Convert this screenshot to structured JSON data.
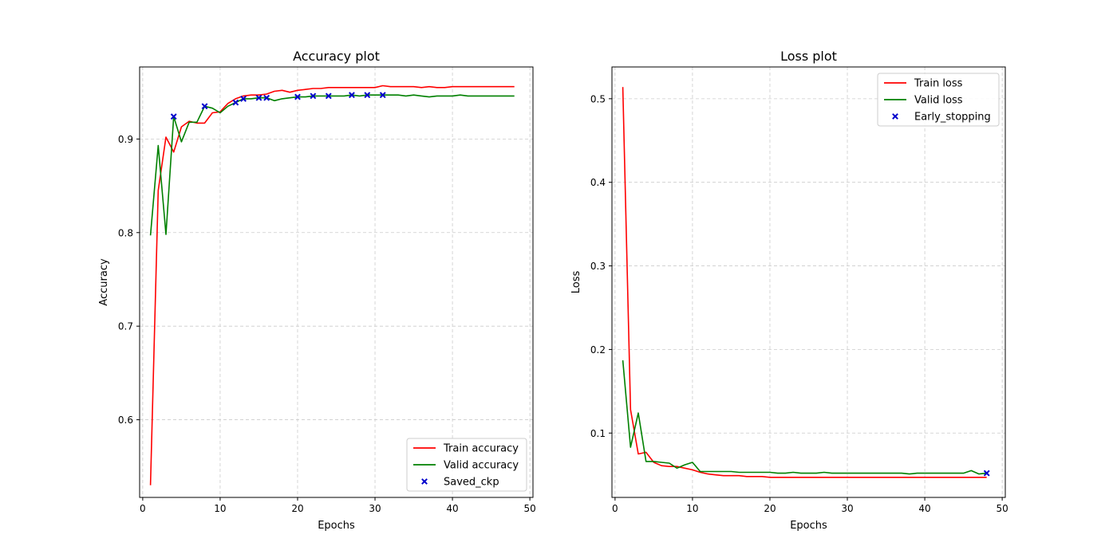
{
  "chart_data": [
    {
      "type": "line",
      "title": "Accuracy plot",
      "xlabel": "Epochs",
      "ylabel": "Accuracy",
      "xlim": [
        -0.4,
        50.4
      ],
      "ylim": [
        0.517,
        0.977
      ],
      "xticks": [
        0,
        10,
        20,
        30,
        40,
        50
      ],
      "yticks": [
        0.6,
        0.7,
        0.8,
        0.9
      ],
      "grid": true,
      "legend_position": "lower-right",
      "series": [
        {
          "name": "Train accuracy",
          "color": "#ff0000",
          "x": [
            1,
            2,
            3,
            4,
            5,
            6,
            7,
            8,
            9,
            10,
            11,
            12,
            13,
            14,
            15,
            16,
            17,
            18,
            19,
            20,
            21,
            22,
            23,
            24,
            25,
            26,
            27,
            28,
            29,
            30,
            31,
            32,
            33,
            34,
            35,
            36,
            37,
            38,
            39,
            40,
            41,
            42,
            43,
            44,
            45,
            46,
            47,
            48
          ],
          "y": [
            0.53,
            0.845,
            0.902,
            0.886,
            0.913,
            0.919,
            0.917,
            0.917,
            0.928,
            0.929,
            0.938,
            0.943,
            0.946,
            0.947,
            0.947,
            0.948,
            0.951,
            0.952,
            0.95,
            0.952,
            0.953,
            0.954,
            0.954,
            0.955,
            0.955,
            0.955,
            0.955,
            0.955,
            0.955,
            0.955,
            0.957,
            0.956,
            0.956,
            0.956,
            0.956,
            0.955,
            0.956,
            0.955,
            0.955,
            0.956,
            0.956,
            0.956,
            0.956,
            0.956,
            0.956,
            0.956,
            0.956,
            0.956
          ]
        },
        {
          "name": "Valid accuracy",
          "color": "#008000",
          "x": [
            1,
            2,
            3,
            4,
            5,
            6,
            7,
            8,
            9,
            10,
            11,
            12,
            13,
            14,
            15,
            16,
            17,
            18,
            19,
            20,
            21,
            22,
            23,
            24,
            25,
            26,
            27,
            28,
            29,
            30,
            31,
            32,
            33,
            34,
            35,
            36,
            37,
            38,
            39,
            40,
            41,
            42,
            43,
            44,
            45,
            46,
            47,
            48
          ],
          "y": [
            0.797,
            0.893,
            0.798,
            0.924,
            0.897,
            0.918,
            0.918,
            0.935,
            0.933,
            0.928,
            0.935,
            0.939,
            0.943,
            0.943,
            0.944,
            0.944,
            0.941,
            0.943,
            0.944,
            0.945,
            0.945,
            0.946,
            0.946,
            0.946,
            0.946,
            0.946,
            0.947,
            0.946,
            0.947,
            0.947,
            0.947,
            0.947,
            0.947,
            0.946,
            0.947,
            0.946,
            0.945,
            0.946,
            0.946,
            0.946,
            0.947,
            0.946,
            0.946,
            0.946,
            0.946,
            0.946,
            0.946,
            0.946
          ]
        },
        {
          "name": "Saved_ckp",
          "type": "scatter",
          "marker": "x",
          "color": "#0000cc",
          "x": [
            4,
            8,
            12,
            13,
            15,
            16,
            20,
            22,
            24,
            27,
            29,
            31
          ],
          "y": [
            0.924,
            0.935,
            0.939,
            0.943,
            0.944,
            0.944,
            0.945,
            0.946,
            0.946,
            0.947,
            0.947,
            0.947
          ]
        }
      ]
    },
    {
      "type": "line",
      "title": "Loss plot",
      "xlabel": "Epochs",
      "ylabel": "Loss",
      "xlim": [
        -0.4,
        50.4
      ],
      "ylim": [
        0.023,
        0.538
      ],
      "xticks": [
        0,
        10,
        20,
        30,
        40,
        50
      ],
      "yticks": [
        0.1,
        0.2,
        0.3,
        0.4,
        0.5
      ],
      "grid": true,
      "legend_position": "upper-right",
      "series": [
        {
          "name": "Train loss",
          "color": "#ff0000",
          "x": [
            1,
            2,
            3,
            4,
            5,
            6,
            7,
            8,
            9,
            10,
            11,
            12,
            13,
            14,
            15,
            16,
            17,
            18,
            19,
            20,
            21,
            22,
            23,
            24,
            25,
            26,
            27,
            28,
            29,
            30,
            31,
            32,
            33,
            34,
            35,
            36,
            37,
            38,
            39,
            40,
            41,
            42,
            43,
            44,
            45,
            46,
            47,
            48
          ],
          "y": [
            0.514,
            0.128,
            0.075,
            0.077,
            0.065,
            0.061,
            0.06,
            0.06,
            0.058,
            0.056,
            0.053,
            0.051,
            0.05,
            0.049,
            0.049,
            0.049,
            0.048,
            0.048,
            0.048,
            0.047,
            0.047,
            0.047,
            0.047,
            0.047,
            0.047,
            0.047,
            0.047,
            0.047,
            0.047,
            0.047,
            0.047,
            0.047,
            0.047,
            0.047,
            0.047,
            0.047,
            0.047,
            0.047,
            0.047,
            0.047,
            0.047,
            0.047,
            0.047,
            0.047,
            0.047,
            0.047,
            0.047,
            0.047
          ]
        },
        {
          "name": "Valid loss",
          "color": "#008000",
          "x": [
            1,
            2,
            3,
            4,
            5,
            6,
            7,
            8,
            9,
            10,
            11,
            12,
            13,
            14,
            15,
            16,
            17,
            18,
            19,
            20,
            21,
            22,
            23,
            24,
            25,
            26,
            27,
            28,
            29,
            30,
            31,
            32,
            33,
            34,
            35,
            36,
            37,
            38,
            39,
            40,
            41,
            42,
            43,
            44,
            45,
            46,
            47,
            48
          ],
          "y": [
            0.187,
            0.083,
            0.124,
            0.066,
            0.066,
            0.065,
            0.064,
            0.058,
            0.062,
            0.065,
            0.054,
            0.054,
            0.054,
            0.054,
            0.054,
            0.053,
            0.053,
            0.053,
            0.053,
            0.053,
            0.052,
            0.052,
            0.053,
            0.052,
            0.052,
            0.052,
            0.053,
            0.052,
            0.052,
            0.052,
            0.052,
            0.052,
            0.052,
            0.052,
            0.052,
            0.052,
            0.052,
            0.051,
            0.052,
            0.052,
            0.052,
            0.052,
            0.052,
            0.052,
            0.052,
            0.055,
            0.051,
            0.052
          ]
        },
        {
          "name": "Early_stopping",
          "type": "scatter",
          "marker": "x",
          "color": "#0000cc",
          "x": [
            48
          ],
          "y": [
            0.052
          ]
        }
      ]
    }
  ]
}
